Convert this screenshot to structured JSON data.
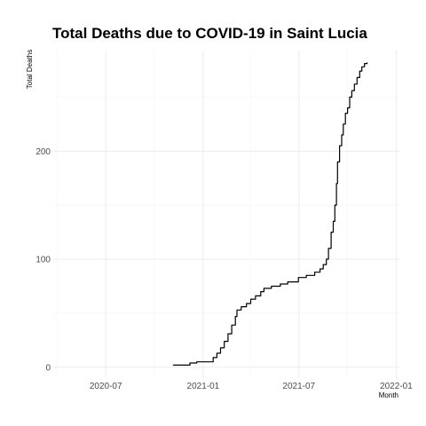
{
  "chart_data": {
    "type": "line",
    "title": "Total Deaths due to COVID-19 in Saint Lucia",
    "xlabel": "Month",
    "ylabel": "Total Deaths",
    "xlim": [
      "2020-03-22",
      "2022-01-07"
    ],
    "ylim": [
      -10,
      293
    ],
    "grid": true,
    "x_ticks": [
      "2020-07",
      "2021-01",
      "2021-07",
      "2022-01"
    ],
    "y_ticks": [
      0,
      100,
      200
    ],
    "series": [
      {
        "points": [
          [
            "2020-11-05",
            2
          ],
          [
            "2020-12-05",
            2
          ],
          [
            "2020-12-07",
            4
          ],
          [
            "2020-12-20",
            5
          ],
          [
            "2021-01-13",
            5
          ],
          [
            "2021-01-20",
            9
          ],
          [
            "2021-01-27",
            13
          ],
          [
            "2021-02-03",
            18
          ],
          [
            "2021-02-10",
            24
          ],
          [
            "2021-02-17",
            31
          ],
          [
            "2021-02-24",
            39
          ],
          [
            "2021-03-03",
            47
          ],
          [
            "2021-03-06",
            53
          ],
          [
            "2021-03-14",
            56
          ],
          [
            "2021-03-24",
            59
          ],
          [
            "2021-04-01",
            63
          ],
          [
            "2021-04-10",
            66
          ],
          [
            "2021-04-20",
            70
          ],
          [
            "2021-04-26",
            73
          ],
          [
            "2021-05-10",
            75
          ],
          [
            "2021-05-27",
            77
          ],
          [
            "2021-06-10",
            79
          ],
          [
            "2021-06-30",
            83
          ],
          [
            "2021-07-15",
            85
          ],
          [
            "2021-07-31",
            88
          ],
          [
            "2021-08-10",
            91
          ],
          [
            "2021-08-16",
            95
          ],
          [
            "2021-08-22",
            100
          ],
          [
            "2021-08-26",
            110
          ],
          [
            "2021-08-31",
            125
          ],
          [
            "2021-09-04",
            135
          ],
          [
            "2021-09-07",
            150
          ],
          [
            "2021-09-10",
            170
          ],
          [
            "2021-09-12",
            190
          ],
          [
            "2021-09-16",
            205
          ],
          [
            "2021-09-20",
            215
          ],
          [
            "2021-09-23",
            225
          ],
          [
            "2021-09-27",
            235
          ],
          [
            "2021-10-01",
            240
          ],
          [
            "2021-10-05",
            250
          ],
          [
            "2021-10-09",
            256
          ],
          [
            "2021-10-14",
            262
          ],
          [
            "2021-10-19",
            268
          ],
          [
            "2021-10-24",
            274
          ],
          [
            "2021-10-28",
            278
          ],
          [
            "2021-11-02",
            281
          ],
          [
            "2021-11-07",
            282
          ]
        ]
      }
    ]
  }
}
